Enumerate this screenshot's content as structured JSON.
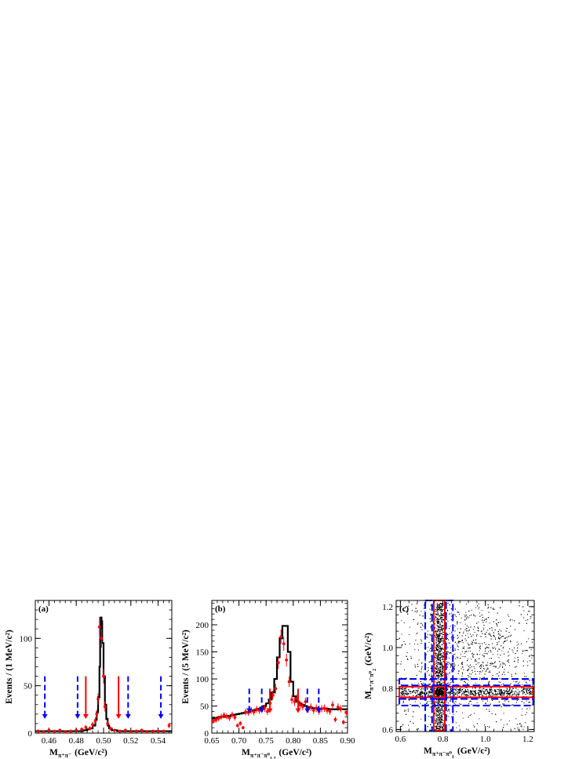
{
  "colors": {
    "data_points": "#ff0000",
    "fit_curve": "#000000",
    "signal_arrows": "#ff0000",
    "sideband_arrows": "#0000ff",
    "signal_box": "#ff0000",
    "sideband_box": "#0000ff",
    "scatter": "#000000"
  },
  "chart_data": [
    {
      "type": "line",
      "panel_label": "(a)",
      "xlabel": "M",
      "xlabel_sub": "π⁺π⁻",
      "xlabel_unit": "(GeV/c²)",
      "ylabel": "Events / (1 MeV/c²)",
      "xlim": [
        0.45,
        0.55
      ],
      "ylim": [
        0,
        140
      ],
      "xticks": [
        "0.46",
        "0.48",
        "0.50",
        "0.52",
        "0.54"
      ],
      "yticks": [
        "0",
        "50",
        "100"
      ],
      "series": [
        {
          "kind": "fit_histogram",
          "x": [
            0.45,
            0.46,
            0.47,
            0.475,
            0.48,
            0.485,
            0.488,
            0.49,
            0.492,
            0.494,
            0.495,
            0.496,
            0.497,
            0.4975,
            0.498,
            0.4985,
            0.499,
            0.5,
            0.501,
            0.502,
            0.503,
            0.504,
            0.506,
            0.508,
            0.51,
            0.515,
            0.52,
            0.53,
            0.54,
            0.55
          ],
          "y": [
            2,
            2,
            2,
            2,
            2,
            3,
            4,
            5,
            8,
            14,
            22,
            38,
            70,
            100,
            122,
            118,
            95,
            60,
            30,
            15,
            8,
            5,
            3,
            3,
            2,
            2,
            2,
            2,
            2,
            2
          ]
        },
        {
          "kind": "data_points",
          "x": [
            0.452,
            0.456,
            0.46,
            0.464,
            0.468,
            0.472,
            0.476,
            0.48,
            0.484,
            0.487,
            0.49,
            0.492,
            0.494,
            0.495,
            0.496,
            0.497,
            0.4985,
            0.5,
            0.501,
            0.503,
            0.505,
            0.508,
            0.512,
            0.516,
            0.52,
            0.524,
            0.528,
            0.532,
            0.536,
            0.54,
            0.544,
            0.548
          ],
          "y": [
            2,
            1,
            3,
            2,
            3,
            1,
            2,
            3,
            4,
            6,
            5,
            9,
            13,
            20,
            36,
            112,
            100,
            60,
            28,
            10,
            5,
            3,
            2,
            3,
            1,
            2,
            3,
            1,
            2,
            2,
            2,
            8
          ]
        }
      ],
      "signal_arrows_x": [
        0.487,
        0.511
      ],
      "sideband_arrows_x": [
        0.457,
        0.481,
        0.518,
        0.542
      ],
      "arrow_top_y": 60,
      "arrow_bottom_y": 15
    },
    {
      "type": "line",
      "panel_label": "(b)",
      "xlabel": "M",
      "xlabel_sub": "π⁺π⁻π⁰",
      "xlabel_sub2": "1,2",
      "xlabel_unit": "(GeV/c²)",
      "ylabel": "Events / (5 MeV/c²)",
      "xlim": [
        0.65,
        0.9
      ],
      "ylim": [
        0,
        245
      ],
      "xticks": [
        "0.65",
        "0.70",
        "0.75",
        "0.80",
        "0.85",
        "0.90"
      ],
      "yticks": [
        "0",
        "50",
        "100",
        "150",
        "200"
      ],
      "series": [
        {
          "kind": "fit_histogram",
          "x": [
            0.65,
            0.655,
            0.66,
            0.665,
            0.67,
            0.675,
            0.68,
            0.685,
            0.69,
            0.695,
            0.7,
            0.705,
            0.71,
            0.715,
            0.72,
            0.725,
            0.73,
            0.735,
            0.74,
            0.745,
            0.75,
            0.755,
            0.76,
            0.765,
            0.77,
            0.775,
            0.78,
            0.785,
            0.79,
            0.795,
            0.8,
            0.805,
            0.81,
            0.815,
            0.82,
            0.825,
            0.83,
            0.835,
            0.84,
            0.845,
            0.85,
            0.855,
            0.86,
            0.865,
            0.87,
            0.875,
            0.88,
            0.885,
            0.89,
            0.895
          ],
          "y": [
            27,
            28,
            29,
            30,
            30,
            31,
            32,
            33,
            34,
            35,
            36,
            37,
            38,
            39,
            41,
            42,
            43,
            45,
            47,
            50,
            55,
            62,
            75,
            100,
            140,
            175,
            198,
            198,
            150,
            95,
            68,
            58,
            55,
            52,
            50,
            48,
            47,
            46,
            46,
            45,
            45,
            45,
            45,
            44,
            44,
            44,
            44,
            44,
            44,
            44
          ]
        },
        {
          "kind": "data_points",
          "x": [
            0.6525,
            0.6575,
            0.6625,
            0.6675,
            0.6725,
            0.6775,
            0.6825,
            0.6875,
            0.6925,
            0.6975,
            0.7025,
            0.7075,
            0.7125,
            0.7175,
            0.7225,
            0.7275,
            0.7325,
            0.7375,
            0.7425,
            0.7475,
            0.7525,
            0.7575,
            0.7625,
            0.7675,
            0.7725,
            0.7775,
            0.7825,
            0.7875,
            0.7925,
            0.7975,
            0.8025,
            0.8075,
            0.8125,
            0.8175,
            0.8225,
            0.8275,
            0.8325,
            0.8375,
            0.8425,
            0.8475,
            0.8525,
            0.8575,
            0.8625,
            0.8675,
            0.8725,
            0.8775,
            0.8825,
            0.8875,
            0.8925,
            0.8975
          ],
          "y": [
            22,
            24,
            27,
            30,
            33,
            31,
            28,
            34,
            29,
            14,
            18,
            10,
            39,
            38,
            42,
            39,
            44,
            42,
            45,
            46,
            40,
            55,
            70,
            82,
            130,
            178,
            165,
            135,
            95,
            62,
            58,
            64,
            52,
            49,
            58,
            44,
            48,
            42,
            46,
            40,
            45,
            46,
            42,
            40,
            52,
            25,
            48,
            45,
            20,
            38
          ]
        }
      ],
      "signal_arrows_x": [
        0.757,
        0.809
      ],
      "sideband_arrows_x": [
        0.719,
        0.742,
        0.826,
        0.847
      ],
      "arrow_top_y": 82,
      "arrow_bottom_y": 37
    },
    {
      "type": "scatter",
      "panel_label": "(c)",
      "xlabel": "M",
      "xlabel_sub": "π⁺π⁻π⁰",
      "xlabel_sub2": "1",
      "xlabel_unit": "(GeV/c²)",
      "ylabel": "M",
      "ylabel_sub": "π⁺π⁻π⁰",
      "ylabel_sub2": "2",
      "ylabel_unit": "(GeV/c²)",
      "xlim": [
        0.58,
        1.23
      ],
      "ylim": [
        0.59,
        1.23
      ],
      "xticks": [
        "0.6",
        "0.8",
        "1.0",
        "1.2"
      ],
      "yticks": [
        "0.6",
        "0.8",
        "1.0",
        "1.2"
      ],
      "signal_region": [
        0.757,
        0.809
      ],
      "sideband_regions": [
        [
          0.717,
          0.749
        ],
        [
          0.815,
          0.847
        ]
      ],
      "approx_point_count": 6000,
      "peak_mass": 0.783
    }
  ]
}
